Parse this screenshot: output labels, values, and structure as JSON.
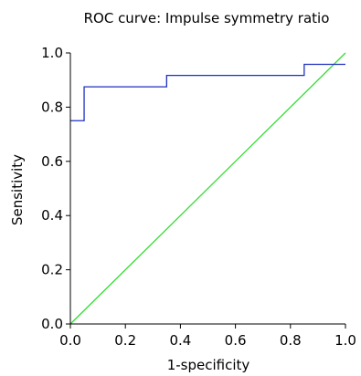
{
  "chart_data": {
    "type": "line",
    "title": "ROC curve: Impulse symmetry ratio",
    "xlabel": "1-specificity",
    "ylabel": "Sensitivity",
    "xlim": [
      0,
      1
    ],
    "ylim": [
      0,
      1
    ],
    "x_ticks": [
      0,
      0.2,
      0.4,
      0.6,
      0.8,
      1
    ],
    "y_ticks": [
      0,
      0.2,
      0.4,
      0.6,
      0.8,
      1
    ],
    "x_tick_labels": [
      "0.0",
      "0.2",
      "0.4",
      "0.6",
      "0.8",
      "1.0"
    ],
    "y_tick_labels": [
      "0.0",
      "0.2",
      "0.4",
      "0.6",
      "0.8",
      "1.0"
    ],
    "grid": false,
    "series": [
      {
        "color": "#1f2fbf",
        "style": "step",
        "x": [
          0,
          0.05,
          0.05,
          0.35,
          0.35,
          0.85,
          0.85,
          1
        ],
        "y": [
          0.75,
          0.75,
          0.875,
          0.875,
          0.917,
          0.917,
          0.958,
          0.958
        ]
      },
      {
        "color": "#33dd33",
        "style": "diagonal",
        "x": [
          0,
          1
        ],
        "y": [
          0,
          1
        ]
      }
    ]
  }
}
